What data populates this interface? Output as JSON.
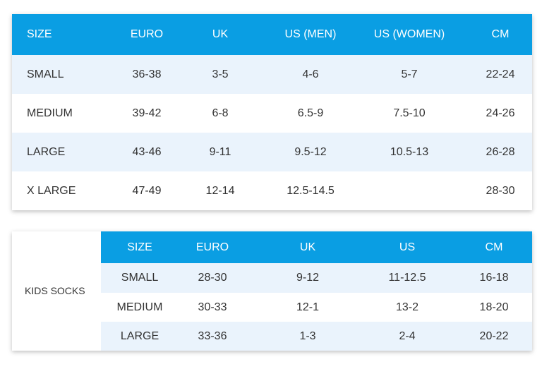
{
  "adult_table": {
    "header": [
      "SIZE",
      "EURO",
      "UK",
      "US (MEN)",
      "US (WOMEN)",
      "CM"
    ],
    "rows": [
      [
        "SMALL",
        "36-38",
        "3-5",
        "4-6",
        "5-7",
        "22-24"
      ],
      [
        "MEDIUM",
        "39-42",
        "6-8",
        "6.5-9",
        "7.5-10",
        "24-26"
      ],
      [
        "LARGE",
        "43-46",
        "9-11",
        "9.5-12",
        "10.5-13",
        "26-28"
      ],
      [
        "X LARGE",
        "47-49",
        "12-14",
        "12.5-14.5",
        null,
        "28-30"
      ]
    ]
  },
  "kids_table": {
    "label": "KIDS SOCKS",
    "header": [
      "SIZE",
      "EURO",
      "UK",
      "US",
      "CM"
    ],
    "rows": [
      [
        "SMALL",
        "28-30",
        "9-12",
        "11-12.5",
        "16-18"
      ],
      [
        "MEDIUM",
        "30-33",
        "12-1",
        "13-2",
        "18-20"
      ],
      [
        "LARGE",
        "33-36",
        "1-3",
        "2-4",
        "20-22"
      ]
    ]
  }
}
